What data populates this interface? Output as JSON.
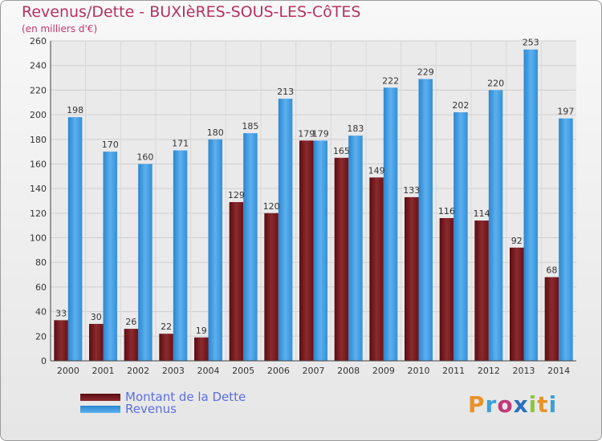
{
  "title": "Revenus/Dette - BUXIèRES-SOUS-LES-CôTES",
  "subtitle": "(en milliers d'€)",
  "legend": [
    {
      "label": "Montant de la Dette",
      "color": "#7a1a1e"
    },
    {
      "label": "Revenus",
      "color": "#3b97df"
    }
  ],
  "logo": {
    "text": "Proxiti",
    "colors": [
      "#e8922a",
      "#3aa0d8",
      "#c03a7a",
      "#2a6fc0",
      "#8bc63e",
      "#e8922a",
      "#3aa0d8"
    ]
  },
  "chart_data": {
    "type": "bar",
    "categories": [
      "2000",
      "2001",
      "2002",
      "2003",
      "2004",
      "2005",
      "2006",
      "2007",
      "2008",
      "2009",
      "2010",
      "2011",
      "2012",
      "2013",
      "2014"
    ],
    "series": [
      {
        "name": "Montant de la Dette",
        "color": "#7a1a1e",
        "values": [
          33,
          30,
          26,
          22,
          19,
          129,
          120,
          179,
          165,
          149,
          133,
          116,
          114,
          92,
          68
        ]
      },
      {
        "name": "Revenus",
        "color": "#3b97df",
        "values": [
          198,
          170,
          160,
          171,
          180,
          185,
          213,
          179,
          183,
          222,
          229,
          202,
          220,
          253,
          197
        ]
      }
    ],
    "ylim": [
      0,
      260
    ],
    "yticks": [
      0,
      20,
      40,
      60,
      80,
      100,
      120,
      140,
      160,
      180,
      200,
      220,
      240,
      260
    ],
    "grid": true,
    "legend": "bottom-left"
  }
}
